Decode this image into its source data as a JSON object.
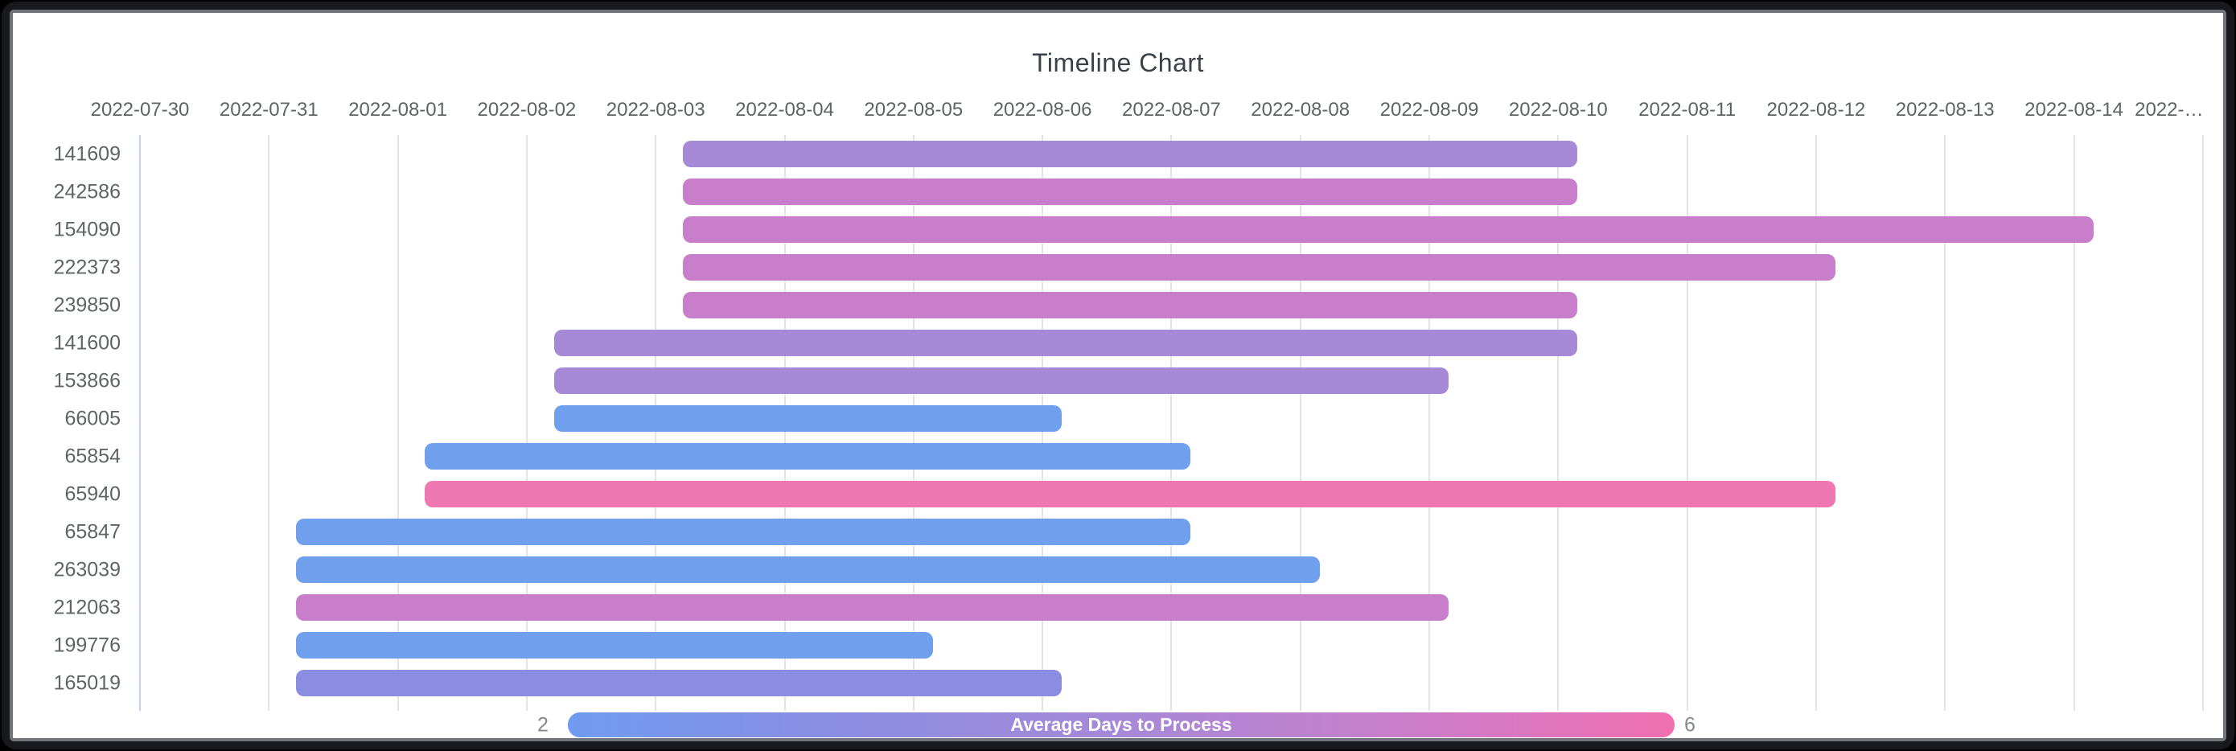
{
  "frame": {
    "outer_color": "#000000",
    "band_color": "#17191c",
    "highlight_color": "#70747a",
    "card_color": "#ffffff"
  },
  "chart_data": {
    "type": "timeline",
    "title": "Timeline Chart",
    "title_color": "#3a4149",
    "x_axis": {
      "start_date": "2022-07-30",
      "tick_labels": [
        "2022-07-30",
        "2022-07-31",
        "2022-08-01",
        "2022-08-02",
        "2022-08-03",
        "2022-08-04",
        "2022-08-05",
        "2022-08-06",
        "2022-08-07",
        "2022-08-08",
        "2022-08-09",
        "2022-08-10",
        "2022-08-11",
        "2022-08-12",
        "2022-08-13",
        "2022-08-14",
        "2022-…"
      ],
      "tick_text_color": "#5f6469",
      "grid_color": "#e3e4e6",
      "axis_line_color": "#c7d0e8",
      "grid_on": true
    },
    "y_axis": {
      "tick_text_color": "#5f6469"
    },
    "rows": [
      {
        "label": "141609",
        "start": "2022-08-03",
        "end": "2022-08-10",
        "color": "#a689d7",
        "avg_days_to_process_est": 4
      },
      {
        "label": "242586",
        "start": "2022-08-03",
        "end": "2022-08-10",
        "color": "#c97ecb",
        "avg_days_to_process_est": 5
      },
      {
        "label": "154090",
        "start": "2022-08-03",
        "end": "2022-08-14",
        "color": "#c97ecb",
        "avg_days_to_process_est": 5
      },
      {
        "label": "222373",
        "start": "2022-08-03",
        "end": "2022-08-12",
        "color": "#c97ecb",
        "avg_days_to_process_est": 5
      },
      {
        "label": "239850",
        "start": "2022-08-03",
        "end": "2022-08-10",
        "color": "#c97ecb",
        "avg_days_to_process_est": 5
      },
      {
        "label": "141600",
        "start": "2022-08-02",
        "end": "2022-08-10",
        "color": "#a689d7",
        "avg_days_to_process_est": 4
      },
      {
        "label": "153866",
        "start": "2022-08-02",
        "end": "2022-08-09",
        "color": "#a689d7",
        "avg_days_to_process_est": 4
      },
      {
        "label": "66005",
        "start": "2022-08-02",
        "end": "2022-08-06",
        "color": "#709fee",
        "avg_days_to_process_est": 2
      },
      {
        "label": "65854",
        "start": "2022-08-01",
        "end": "2022-08-07",
        "color": "#709fee",
        "avg_days_to_process_est": 2
      },
      {
        "label": "65940",
        "start": "2022-08-01",
        "end": "2022-08-12",
        "color": "#f078b2",
        "avg_days_to_process_est": 6
      },
      {
        "label": "65847",
        "start": "2022-07-31",
        "end": "2022-08-07",
        "color": "#709fee",
        "avg_days_to_process_est": 2
      },
      {
        "label": "263039",
        "start": "2022-07-31",
        "end": "2022-08-08",
        "color": "#709fee",
        "avg_days_to_process_est": 2
      },
      {
        "label": "212063",
        "start": "2022-07-31",
        "end": "2022-08-09",
        "color": "#c97ecb",
        "avg_days_to_process_est": 5
      },
      {
        "label": "199776",
        "start": "2022-07-31",
        "end": "2022-08-05",
        "color": "#709fee",
        "avg_days_to_process_est": 2
      },
      {
        "label": "165019",
        "start": "2022-07-31",
        "end": "2022-08-06",
        "color": "#8b8de3",
        "avg_days_to_process_est": 3
      }
    ],
    "colorbar": {
      "label": "Average Days to Process",
      "min": "2",
      "max": "6",
      "number_color": "#85888c",
      "gradient": [
        "#6f9bf0",
        "#8b8de3",
        "#a689d7",
        "#c97ecb",
        "#f06fb0"
      ],
      "position": "bottom"
    },
    "legend_position": "bottom"
  }
}
